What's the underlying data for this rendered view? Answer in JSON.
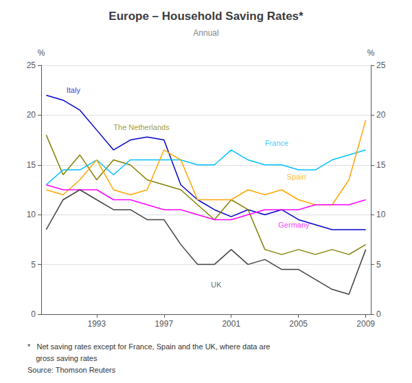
{
  "chart_data": {
    "type": "line",
    "title": "Europe – Household Saving Rates*",
    "subtitle": "Annual",
    "footnotes": [
      "*   Net saving rates except for France, Spain and the UK, where data are",
      "    gross saving rates",
      "Source: Thomson Reuters"
    ],
    "ylabel": "%",
    "y2label": "%",
    "x": [
      1990,
      1991,
      1992,
      1993,
      1994,
      1995,
      1996,
      1997,
      1998,
      1999,
      2000,
      2001,
      2002,
      2003,
      2004,
      2005,
      2006,
      2007,
      2008,
      2009
    ],
    "xlim": [
      1989.7,
      2009.3
    ],
    "xticks": [
      1993,
      1997,
      2001,
      2005,
      2009
    ],
    "ylim": [
      0,
      25
    ],
    "yticks": [
      0,
      5,
      10,
      15,
      20,
      25
    ],
    "y2lim": [
      0,
      25
    ],
    "y2ticks": [
      0,
      5,
      10,
      15,
      20,
      25
    ],
    "grid": true,
    "legend": false,
    "series": [
      {
        "name": "Italy",
        "color": "#0000CC",
        "values": [
          22.0,
          21.5,
          20.5,
          18.5,
          16.5,
          17.5,
          17.8,
          17.5,
          13.0,
          11.5,
          10.5,
          9.8,
          10.5,
          10.0,
          10.5,
          9.5,
          9.0,
          8.5,
          8.5,
          8.5
        ]
      },
      {
        "name": "The Netherlands",
        "color": "#808000",
        "values": [
          18.0,
          14.0,
          16.0,
          13.5,
          15.5,
          15.0,
          13.5,
          13.0,
          12.5,
          11.0,
          9.5,
          11.5,
          10.5,
          6.5,
          6.0,
          6.5,
          6.0,
          6.5,
          6.0,
          7.0
        ]
      },
      {
        "name": "France",
        "color": "#00BFFF",
        "values": [
          13.0,
          14.5,
          14.5,
          15.5,
          14.0,
          15.5,
          15.5,
          15.5,
          15.5,
          15.0,
          15.0,
          16.5,
          15.5,
          15.0,
          15.0,
          14.5,
          14.5,
          15.5,
          16.0,
          16.5
        ]
      },
      {
        "name": "Spain",
        "color": "#FFA500",
        "values": [
          12.5,
          12.0,
          13.5,
          15.5,
          12.5,
          12.0,
          12.5,
          16.5,
          15.5,
          11.5,
          11.5,
          11.5,
          12.5,
          12.0,
          12.5,
          11.5,
          11.0,
          11.0,
          13.5,
          19.5
        ]
      },
      {
        "name": "Germany",
        "color": "#FF00FF",
        "values": [
          13.0,
          12.5,
          12.5,
          12.5,
          11.5,
          11.5,
          11.0,
          10.5,
          10.5,
          10.0,
          9.5,
          9.5,
          10.0,
          10.5,
          10.5,
          10.5,
          11.0,
          11.0,
          11.0,
          11.5
        ]
      },
      {
        "name": "UK",
        "color": "#404040",
        "values": [
          8.5,
          11.5,
          12.5,
          11.5,
          10.5,
          10.5,
          9.5,
          9.5,
          7.0,
          5.0,
          5.0,
          6.5,
          5.0,
          5.5,
          4.5,
          4.5,
          3.5,
          2.5,
          2.0,
          6.5
        ]
      }
    ],
    "annotations": [
      {
        "text": "Italy",
        "x": 1991.2,
        "y": 22.5,
        "color": "#0000CC"
      },
      {
        "text": "The Netherlands",
        "x": 1994.0,
        "y": 18.8,
        "color": "#808000"
      },
      {
        "text": "France",
        "x": 2003.0,
        "y": 17.2,
        "color": "#00BFFF"
      },
      {
        "text": "Spain",
        "x": 2004.3,
        "y": 13.8,
        "color": "#FFA500"
      },
      {
        "text": "Germany",
        "x": 2003.8,
        "y": 9.0,
        "color": "#FF00FF"
      },
      {
        "text": "UK",
        "x": 1999.8,
        "y": 3.0,
        "color": "#404040"
      }
    ]
  }
}
